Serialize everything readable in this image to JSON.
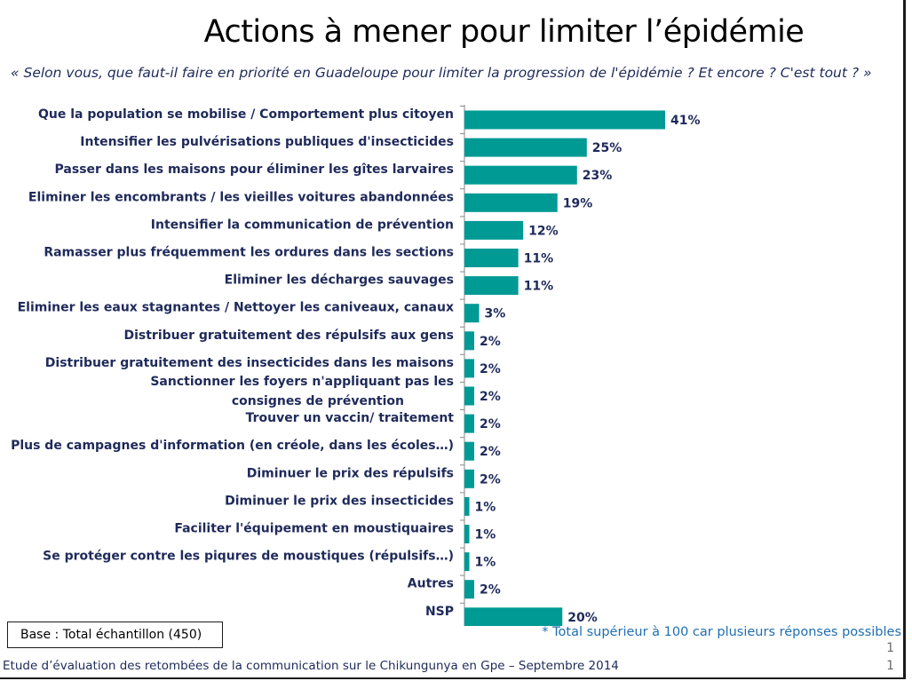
{
  "header": {
    "title": "Actions à mener pour limiter l’épidémie",
    "subtitle": "« Selon vous, que faut-il faire en priorité en Guadeloupe pour limiter la progression de l'épidémie ? Et encore ? C'est tout ?  »"
  },
  "chart_data": {
    "type": "bar",
    "orientation": "horizontal",
    "bar_color": "#009a95",
    "categories": [
      "Que la population se mobilise / Comportement plus citoyen",
      "Intensifier les pulvérisations publiques d'insecticides",
      "Passer dans les maisons pour éliminer les gîtes larvaires",
      "Eliminer les encombrants / les vieilles voitures abandonnées",
      "Intensifier la communication de prévention",
      "Ramasser plus fréquemment les ordures dans les sections",
      "Eliminer les décharges sauvages",
      "Eliminer les eaux stagnantes / Nettoyer les caniveaux, canaux",
      "Distribuer gratuitement des répulsifs aux gens",
      "Distribuer gratuitement des insecticides dans les maisons",
      "Sanctionner les foyers n'appliquant pas les consignes de prévention",
      "Trouver un vaccin/ traitement",
      "Plus de campagnes d'information (en créole, dans les écoles…)",
      "Diminuer le prix des répulsifs",
      "Diminuer le prix des insecticides",
      "Faciliter l'équipement en moustiquaires",
      "Se protéger contre les piqures de moustiques (répulsifs…)",
      "Autres",
      "NSP"
    ],
    "values": [
      41,
      25,
      23,
      19,
      12,
      11,
      11,
      3,
      2,
      2,
      2,
      2,
      2,
      2,
      1,
      1,
      1,
      2,
      20
    ],
    "value_labels": [
      "41%",
      "25%",
      "23%",
      "19%",
      "12%",
      "11%",
      "11%",
      "3%",
      "2%",
      "2%",
      "2%",
      "2%",
      "2%",
      "2%",
      "1%",
      "1%",
      "1%",
      "2%",
      "20%"
    ],
    "xlim": [
      0,
      41
    ],
    "grid": false,
    "legend": "none"
  },
  "footer": {
    "base": "Base :  Total échantillon (450)",
    "note": "* Total supérieur à 100  car plusieurs réponses possibles",
    "source": "Etude d’évaluation des retombées de la communication sur le Chikungunya en Gpe – Septembre 2014",
    "page_number_1": "1",
    "page_number_2": "1"
  }
}
